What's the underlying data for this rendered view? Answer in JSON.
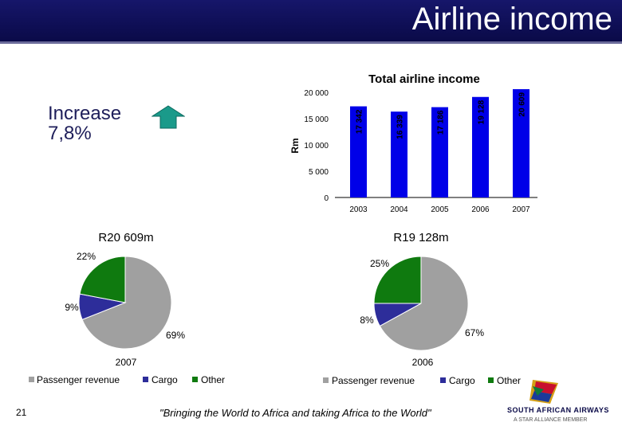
{
  "header": {
    "title": "Airline income"
  },
  "increase": {
    "line1": "Increase",
    "line2": "7,8%"
  },
  "colors": {
    "bar": "#0000e8",
    "passenger": "#a0a0a0",
    "cargo": "#2d2d9a",
    "other": "#0f7a0f",
    "banner": "#10105a"
  },
  "chart_data": [
    {
      "type": "bar",
      "title": "Total airline income",
      "ylabel": "Rm",
      "categories": [
        "2003",
        "2004",
        "2005",
        "2006",
        "2007"
      ],
      "values": [
        17342,
        16339,
        17186,
        19128,
        20609
      ],
      "value_labels": [
        "17 342",
        "16 339",
        "17 186",
        "19 128",
        "20 609"
      ],
      "yticks": [
        "0",
        "5 000",
        "10 000",
        "15 000",
        "20 000"
      ],
      "ylim": [
        0,
        20000
      ]
    },
    {
      "type": "pie",
      "title": "R20 609m",
      "caption": "2007",
      "categories": [
        "Passenger revenue",
        "Cargo",
        "Other"
      ],
      "values": [
        69,
        9,
        22
      ],
      "labels": [
        "69%",
        "9%",
        "22%"
      ]
    },
    {
      "type": "pie",
      "title": "R19 128m",
      "caption": "2006",
      "categories": [
        "Passenger revenue",
        "Cargo",
        "Other"
      ],
      "values": [
        67,
        8,
        25
      ],
      "labels": [
        "67%",
        "8%",
        "25%"
      ]
    }
  ],
  "footer": {
    "page_number": "21",
    "quote": "\"Bringing the World to Africa and taking Africa to the World\""
  },
  "logo": {
    "name": "SOUTH AFRICAN AIRWAYS",
    "subtitle": "A STAR ALLIANCE MEMBER"
  }
}
